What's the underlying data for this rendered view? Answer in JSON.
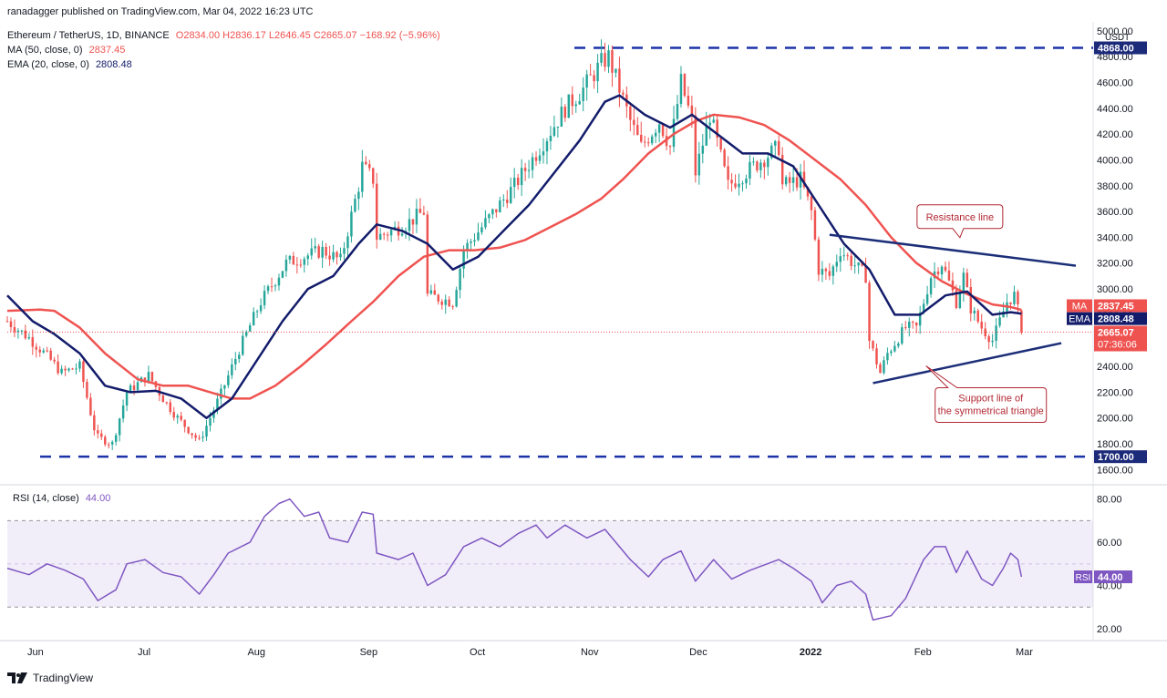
{
  "header": {
    "published": "ranadagger published on TradingView.com, Mar 04, 2022 16:23 UTC",
    "symbol": "Ethereum / TetherUS, 1D, BINANCE",
    "ohlc": "O2834.00 H2836.17 L2646.45 C2665.07 −168.92 (−5.96%)",
    "ma_label": "MA (50, close, 0)",
    "ma_value": "2837.45",
    "ema_label": "EMA (20, close, 0)",
    "ema_value": "2808.48"
  },
  "rsi_header": {
    "label": "RSI (14, close)",
    "value": "44.00"
  },
  "footer": {
    "brand": "TradingView"
  },
  "colors": {
    "up": "#26a69a",
    "down": "#ef5350",
    "ma": "#ef5350",
    "ema": "#131c6b",
    "rsi": "#7e57c2",
    "trend": "#1c2e78",
    "dash": "#1c32a8"
  },
  "chart_data": [
    {
      "type": "candlestick",
      "title": "Ethereum / TetherUS, 1D, BINANCE",
      "currency": "USDT",
      "x_tick_labels": [
        "Jun",
        "Jul",
        "Aug",
        "Sep",
        "Oct",
        "Nov",
        "Dec",
        "2022",
        "Feb",
        "Mar"
      ],
      "y_tick_labels": [
        "1600.00",
        "1800.00",
        "2000.00",
        "2200.00",
        "2400.00",
        "2600.00",
        "2800.00",
        "3000.00",
        "3200.00",
        "3400.00",
        "3600.00",
        "3800.00",
        "4000.00",
        "4200.00",
        "4400.00",
        "4600.00",
        "4800.00",
        "5000.00"
      ],
      "ylim": [
        1560,
        5020
      ],
      "x_range": [
        "2021-05-28",
        "2022-03-19"
      ],
      "close_path": [
        [
          "2021-05-28",
          2750
        ],
        [
          "2021-06-03",
          2620
        ],
        [
          "2021-06-08",
          2480
        ],
        [
          "2021-06-12",
          2350
        ],
        [
          "2021-06-17",
          2400
        ],
        [
          "2021-06-21",
          1920
        ],
        [
          "2021-06-22",
          1850
        ],
        [
          "2021-06-26",
          1800
        ],
        [
          "2021-06-30",
          2200
        ],
        [
          "2021-07-06",
          2330
        ],
        [
          "2021-07-10",
          2150
        ],
        [
          "2021-07-14",
          2000
        ],
        [
          "2021-07-20",
          1820
        ],
        [
          "2021-07-22",
          1940
        ],
        [
          "2021-07-26",
          2190
        ],
        [
          "2021-07-31",
          2530
        ],
        [
          "2021-08-06",
          2900
        ],
        [
          "2021-08-13",
          3200
        ],
        [
          "2021-08-23",
          3300
        ],
        [
          "2021-08-28",
          3220
        ],
        [
          "2021-09-02",
          3800
        ],
        [
          "2021-09-03",
          3950
        ],
        [
          "2021-09-06",
          3850
        ],
        [
          "2021-09-07",
          3400
        ],
        [
          "2021-09-15",
          3500
        ],
        [
          "2021-09-20",
          3600
        ],
        [
          "2021-09-21",
          2950
        ],
        [
          "2021-09-28",
          2900
        ],
        [
          "2021-10-01",
          3300
        ],
        [
          "2021-10-08",
          3550
        ],
        [
          "2021-10-15",
          3800
        ],
        [
          "2021-10-21",
          4050
        ],
        [
          "2021-10-29",
          4400
        ],
        [
          "2021-11-03",
          4550
        ],
        [
          "2021-11-08",
          4750
        ],
        [
          "2021-11-10",
          4800
        ],
        [
          "2021-11-16",
          4300
        ],
        [
          "2021-11-19",
          4100
        ],
        [
          "2021-11-24",
          4300
        ],
        [
          "2021-11-27",
          4100
        ],
        [
          "2021-11-30",
          4600
        ],
        [
          "2021-12-03",
          4300
        ],
        [
          "2021-12-04",
          3900
        ],
        [
          "2021-12-08",
          4350
        ],
        [
          "2021-12-13",
          3800
        ],
        [
          "2021-12-20",
          3950
        ],
        [
          "2021-12-27",
          4100
        ],
        [
          "2021-12-28",
          3800
        ],
        [
          "2022-01-02",
          3850
        ],
        [
          "2022-01-05",
          3600
        ],
        [
          "2022-01-07",
          3150
        ],
        [
          "2022-01-10",
          3100
        ],
        [
          "2022-01-13",
          3300
        ],
        [
          "2022-01-20",
          3100
        ],
        [
          "2022-01-21",
          2600
        ],
        [
          "2022-01-24",
          2350
        ],
        [
          "2022-01-26",
          2500
        ],
        [
          "2022-01-31",
          2700
        ],
        [
          "2022-02-03",
          2700
        ],
        [
          "2022-02-07",
          3100
        ],
        [
          "2022-02-10",
          3200
        ],
        [
          "2022-02-14",
          2900
        ],
        [
          "2022-02-16",
          3100
        ],
        [
          "2022-02-18",
          2850
        ],
        [
          "2022-02-21",
          2700
        ],
        [
          "2022-02-24",
          2600
        ],
        [
          "2022-02-28",
          2900
        ],
        [
          "2022-03-02",
          2950
        ],
        [
          "2022-03-03",
          2834
        ],
        [
          "2022-03-04",
          2665.07
        ]
      ],
      "ma50_path": [
        [
          "2021-05-28",
          2830
        ],
        [
          "2021-06-06",
          2840
        ],
        [
          "2021-06-10",
          2830
        ],
        [
          "2021-06-17",
          2700
        ],
        [
          "2021-06-24",
          2500
        ],
        [
          "2021-07-03",
          2300
        ],
        [
          "2021-07-10",
          2250
        ],
        [
          "2021-07-17",
          2250
        ],
        [
          "2021-07-23",
          2200
        ],
        [
          "2021-07-29",
          2150
        ],
        [
          "2021-08-03",
          2150
        ],
        [
          "2021-08-10",
          2250
        ],
        [
          "2021-08-17",
          2400
        ],
        [
          "2021-08-24",
          2570
        ],
        [
          "2021-08-31",
          2750
        ],
        [
          "2021-09-06",
          2900
        ],
        [
          "2021-09-13",
          3100
        ],
        [
          "2021-09-20",
          3250
        ],
        [
          "2021-09-27",
          3300
        ],
        [
          "2021-10-04",
          3300
        ],
        [
          "2021-10-11",
          3320
        ],
        [
          "2021-10-18",
          3380
        ],
        [
          "2021-10-25",
          3480
        ],
        [
          "2021-11-01",
          3580
        ],
        [
          "2021-11-08",
          3700
        ],
        [
          "2021-11-14",
          3850
        ],
        [
          "2021-11-21",
          4050
        ],
        [
          "2021-11-28",
          4200
        ],
        [
          "2021-12-04",
          4300
        ],
        [
          "2021-12-09",
          4350
        ],
        [
          "2021-12-16",
          4330
        ],
        [
          "2021-12-23",
          4270
        ],
        [
          "2021-12-30",
          4150
        ],
        [
          "2022-01-06",
          4000
        ],
        [
          "2022-01-13",
          3850
        ],
        [
          "2022-01-20",
          3650
        ],
        [
          "2022-01-27",
          3400
        ],
        [
          "2022-02-03",
          3200
        ],
        [
          "2022-02-10",
          3060
        ],
        [
          "2022-02-17",
          2960
        ],
        [
          "2022-02-24",
          2880
        ],
        [
          "2022-03-01",
          2860
        ],
        [
          "2022-03-04",
          2837.45
        ]
      ],
      "ema20_path": [
        [
          "2021-05-28",
          2950
        ],
        [
          "2021-06-04",
          2750
        ],
        [
          "2021-06-10",
          2650
        ],
        [
          "2021-06-17",
          2500
        ],
        [
          "2021-06-24",
          2250
        ],
        [
          "2021-07-01",
          2200
        ],
        [
          "2021-07-08",
          2210
        ],
        [
          "2021-07-15",
          2150
        ],
        [
          "2021-07-22",
          2000
        ],
        [
          "2021-07-29",
          2150
        ],
        [
          "2021-08-05",
          2450
        ],
        [
          "2021-08-12",
          2750
        ],
        [
          "2021-08-19",
          3000
        ],
        [
          "2021-08-26",
          3100
        ],
        [
          "2021-09-02",
          3350
        ],
        [
          "2021-09-07",
          3500
        ],
        [
          "2021-09-14",
          3450
        ],
        [
          "2021-09-21",
          3350
        ],
        [
          "2021-09-28",
          3150
        ],
        [
          "2021-10-05",
          3250
        ],
        [
          "2021-10-12",
          3450
        ],
        [
          "2021-10-19",
          3650
        ],
        [
          "2021-10-26",
          3900
        ],
        [
          "2021-11-02",
          4150
        ],
        [
          "2021-11-09",
          4450
        ],
        [
          "2021-11-13",
          4500
        ],
        [
          "2021-11-20",
          4350
        ],
        [
          "2021-11-27",
          4250
        ],
        [
          "2021-12-03",
          4350
        ],
        [
          "2021-12-10",
          4200
        ],
        [
          "2021-12-17",
          4050
        ],
        [
          "2021-12-24",
          4050
        ],
        [
          "2021-12-31",
          3950
        ],
        [
          "2022-01-07",
          3650
        ],
        [
          "2022-01-14",
          3350
        ],
        [
          "2022-01-21",
          3150
        ],
        [
          "2022-01-28",
          2800
        ],
        [
          "2022-02-04",
          2800
        ],
        [
          "2022-02-11",
          2950
        ],
        [
          "2022-02-17",
          2980
        ],
        [
          "2022-02-24",
          2800
        ],
        [
          "2022-03-01",
          2820
        ],
        [
          "2022-03-04",
          2808.48
        ]
      ],
      "support_level": 1700.0,
      "resistance_level": 4868.0,
      "resistance_line": [
        [
          "2022-01-10",
          3420
        ],
        [
          "2022-03-19",
          3180
        ]
      ],
      "support_line": [
        [
          "2022-01-22",
          2270
        ],
        [
          "2022-03-15",
          2580
        ]
      ],
      "annotations": [
        {
          "text": "Resistance line",
          "date": "2022-02-15",
          "value": 3560
        },
        {
          "text": "Support line of the symmetrical triangle",
          "date": "2022-02-21",
          "value": 2100
        }
      ],
      "price_badges": {
        "level_high": "4868.00",
        "level_low": "1700.00",
        "ma_tag": "MA",
        "ma_value": "2837.45",
        "ema_tag": "EMA",
        "ema_value": "2808.48",
        "last_price": "2665.07",
        "countdown": "07:36:06"
      }
    },
    {
      "type": "line",
      "title": "RSI (14, close)",
      "y_tick_labels": [
        "20.00",
        "40.00",
        "60.00",
        "80.00"
      ],
      "ylim": [
        17,
        82
      ],
      "band": [
        30,
        70
      ],
      "midline": 50,
      "rsi_path": [
        [
          "2021-05-28",
          48
        ],
        [
          "2021-06-03",
          45
        ],
        [
          "2021-06-08",
          50
        ],
        [
          "2021-06-13",
          47
        ],
        [
          "2021-06-18",
          43
        ],
        [
          "2021-06-22",
          33
        ],
        [
          "2021-06-27",
          38
        ],
        [
          "2021-06-30",
          50
        ],
        [
          "2021-07-05",
          52
        ],
        [
          "2021-07-10",
          46
        ],
        [
          "2021-07-15",
          44
        ],
        [
          "2021-07-20",
          36
        ],
        [
          "2021-07-24",
          45
        ],
        [
          "2021-07-28",
          55
        ],
        [
          "2021-08-03",
          60
        ],
        [
          "2021-08-07",
          72
        ],
        [
          "2021-08-11",
          78
        ],
        [
          "2021-08-14",
          80
        ],
        [
          "2021-08-18",
          72
        ],
        [
          "2021-08-22",
          74
        ],
        [
          "2021-08-25",
          62
        ],
        [
          "2021-08-30",
          60
        ],
        [
          "2021-09-03",
          74
        ],
        [
          "2021-09-06",
          73
        ],
        [
          "2021-09-07",
          55
        ],
        [
          "2021-09-13",
          52
        ],
        [
          "2021-09-17",
          55
        ],
        [
          "2021-09-21",
          40
        ],
        [
          "2021-09-26",
          45
        ],
        [
          "2021-10-01",
          58
        ],
        [
          "2021-10-06",
          62
        ],
        [
          "2021-10-11",
          58
        ],
        [
          "2021-10-16",
          64
        ],
        [
          "2021-10-21",
          68
        ],
        [
          "2021-10-24",
          62
        ],
        [
          "2021-10-29",
          68
        ],
        [
          "2021-11-04",
          62
        ],
        [
          "2021-11-09",
          66
        ],
        [
          "2021-11-16",
          52
        ],
        [
          "2021-11-21",
          44
        ],
        [
          "2021-11-25",
          52
        ],
        [
          "2021-11-30",
          56
        ],
        [
          "2021-12-04",
          42
        ],
        [
          "2021-12-09",
          52
        ],
        [
          "2021-12-14",
          43
        ],
        [
          "2021-12-19",
          47
        ],
        [
          "2021-12-27",
          52
        ],
        [
          "2021-12-31",
          48
        ],
        [
          "2022-01-05",
          42
        ],
        [
          "2022-01-08",
          32
        ],
        [
          "2022-01-12",
          40
        ],
        [
          "2022-01-16",
          42
        ],
        [
          "2022-01-20",
          36
        ],
        [
          "2022-01-22",
          24
        ],
        [
          "2022-01-27",
          26
        ],
        [
          "2022-01-31",
          34
        ],
        [
          "2022-02-05",
          52
        ],
        [
          "2022-02-08",
          58
        ],
        [
          "2022-02-11",
          58
        ],
        [
          "2022-02-14",
          46
        ],
        [
          "2022-02-17",
          56
        ],
        [
          "2022-02-21",
          43
        ],
        [
          "2022-02-24",
          40
        ],
        [
          "2022-02-27",
          48
        ],
        [
          "2022-03-01",
          55
        ],
        [
          "2022-03-03",
          52
        ],
        [
          "2022-03-04",
          44
        ]
      ],
      "value_badge": {
        "tag": "RSI",
        "value": "44.00"
      }
    }
  ]
}
